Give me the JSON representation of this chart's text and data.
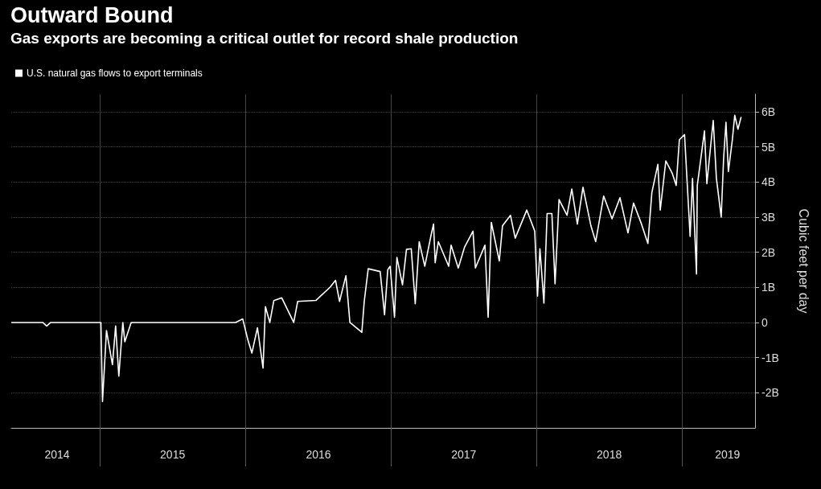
{
  "chart_data": {
    "type": "line",
    "title": "Outward Bound",
    "subtitle": "Gas exports are becoming a critical outlet for record shale production",
    "ylabel": "Cubic feet per day",
    "x": [
      "2014-05-23",
      "2014-08-10",
      "2014-08-20",
      "2014-08-30",
      "2015-01-03",
      "2015-01-07",
      "2015-01-17",
      "2015-02-01",
      "2015-02-09",
      "2015-02-17",
      "2015-02-27",
      "2015-03-04",
      "2015-03-20",
      "2015-12-07",
      "2015-12-25",
      "2016-01-07",
      "2016-01-17",
      "2016-01-31",
      "2016-02-14",
      "2016-02-20",
      "2016-03-02",
      "2016-03-12",
      "2016-04-01",
      "2016-05-01",
      "2016-05-11",
      "2016-06-26",
      "2016-07-31",
      "2016-08-14",
      "2016-08-24",
      "2016-09-09",
      "2016-09-19",
      "2016-10-19",
      "2016-10-25",
      "2016-11-04",
      "2016-12-04",
      "2016-12-15",
      "2016-12-23",
      "2016-12-29",
      "2017-01-09",
      "2017-01-15",
      "2017-01-29",
      "2017-02-08",
      "2017-02-20",
      "2017-03-02",
      "2017-03-12",
      "2017-03-26",
      "2017-04-11",
      "2017-04-17",
      "2017-04-21",
      "2017-04-29",
      "2017-05-25",
      "2017-05-31",
      "2017-06-18",
      "2017-07-04",
      "2017-07-25",
      "2017-07-31",
      "2017-08-24",
      "2017-09-01",
      "2017-09-09",
      "2017-09-29",
      "2017-10-07",
      "2017-10-27",
      "2017-11-08",
      "2017-12-07",
      "2017-12-27",
      "2018-01-03",
      "2018-01-09",
      "2018-01-19",
      "2018-01-27",
      "2018-02-08",
      "2018-02-16",
      "2018-02-26",
      "2018-03-18",
      "2018-03-30",
      "2018-04-13",
      "2018-04-27",
      "2018-05-17",
      "2018-05-29",
      "2018-06-18",
      "2018-07-09",
      "2018-07-29",
      "2018-08-18",
      "2018-09-01",
      "2018-09-21",
      "2018-10-07",
      "2018-10-17",
      "2018-11-01",
      "2018-11-07",
      "2018-11-21",
      "2018-12-07",
      "2018-12-17",
      "2018-12-25",
      "2019-01-07",
      "2019-01-13",
      "2019-01-21",
      "2019-01-27",
      "2019-02-06",
      "2019-02-08",
      "2019-02-26",
      "2019-03-04",
      "2019-03-20",
      "2019-03-28",
      "2019-04-09",
      "2019-04-15",
      "2019-04-21",
      "2019-04-27",
      "2019-05-07",
      "2019-05-13",
      "2019-05-21",
      "2019-05-29"
    ],
    "series": [
      {
        "name": "U.S. natural gas flows to export terminals",
        "color": "#ffffff",
        "values": [
          0,
          0,
          -0.1,
          0,
          0,
          -2.25,
          -0.23,
          -1.2,
          -0.1,
          -1.53,
          0,
          -0.55,
          0,
          0,
          0.1,
          -0.5,
          -0.87,
          -0.15,
          -1.3,
          0.45,
          0,
          0.62,
          0.7,
          0,
          0.6,
          0.63,
          1.0,
          1.2,
          0.6,
          1.33,
          0,
          -0.28,
          0.6,
          1.53,
          1.45,
          0.22,
          1.5,
          1.6,
          0.15,
          1.85,
          1.07,
          2.08,
          2.1,
          0.53,
          2.3,
          1.6,
          2.5,
          2.8,
          1.7,
          2.3,
          1.6,
          2.2,
          1.55,
          2.15,
          2.6,
          1.55,
          2.2,
          0.15,
          2.85,
          1.75,
          2.75,
          3.05,
          2.4,
          3.2,
          2.6,
          0.75,
          2.1,
          0.55,
          3.1,
          3.1,
          1.1,
          3.5,
          3.05,
          3.8,
          2.8,
          3.85,
          2.75,
          2.3,
          3.6,
          2.95,
          3.55,
          2.55,
          3.4,
          2.8,
          2.25,
          3.7,
          4.5,
          3.2,
          4.6,
          4.25,
          3.9,
          5.2,
          5.35,
          4.1,
          2.45,
          4.1,
          1.38,
          3.9,
          5.45,
          3.95,
          5.75,
          4.1,
          3.0,
          4.65,
          5.7,
          4.3,
          5.2,
          5.9,
          5.5,
          5.85
        ]
      }
    ],
    "xlim": [
      "2014-05-23",
      "2019-07-03"
    ],
    "xticks": [
      {
        "value": "2014-09-15",
        "label": "2014"
      },
      {
        "value": "2015-01-01",
        "label": null
      },
      {
        "value": "2015-07-02",
        "label": "2015"
      },
      {
        "value": "2016-01-01",
        "label": null
      },
      {
        "value": "2016-07-02",
        "label": "2016"
      },
      {
        "value": "2017-01-01",
        "label": null
      },
      {
        "value": "2017-07-02",
        "label": "2017"
      },
      {
        "value": "2018-01-01",
        "label": null
      },
      {
        "value": "2018-07-02",
        "label": "2018"
      },
      {
        "value": "2019-01-01",
        "label": null
      },
      {
        "value": "2019-04-25",
        "label": "2019"
      }
    ],
    "ylim": [
      -3,
      6.5
    ],
    "yticks": [
      {
        "value": -2,
        "label": "-2B"
      },
      {
        "value": -1,
        "label": "-1B"
      },
      0,
      {
        "value": 1,
        "label": "1B"
      },
      {
        "value": 2,
        "label": "2B"
      },
      {
        "value": 3,
        "label": "3B"
      },
      {
        "value": 4,
        "label": "4B"
      },
      {
        "value": 5,
        "label": "5B"
      },
      {
        "value": 6,
        "label": "6B"
      }
    ],
    "grid": true,
    "legend": "top left",
    "marker": "none",
    "line_style": "solid"
  }
}
